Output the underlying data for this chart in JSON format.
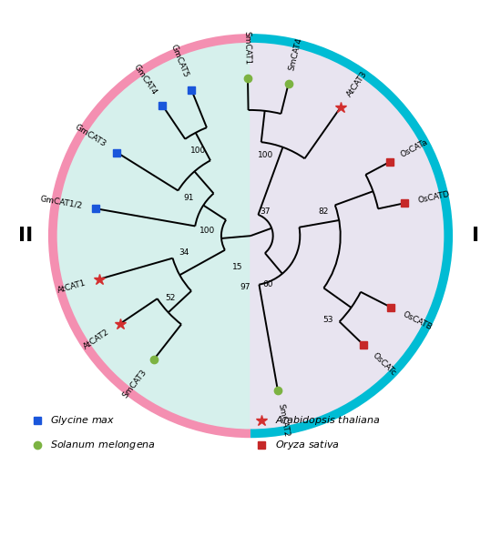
{
  "figsize": [
    5.5,
    5.89
  ],
  "dpi": 100,
  "bg_color_II": "#d6f0ec",
  "bg_color_I": "#e8e4f0",
  "arc_color_II": "#f48fb1",
  "arc_color_I": "#00bcd4",
  "arc_lw": 7,
  "wedge_r": 0.88,
  "leaf_r": 0.7,
  "species_colors": {
    "Gm": "#1a56db",
    "At": "#d32f2f",
    "Sm": "#7cb342",
    "Os": "#c62828"
  },
  "legend": [
    {
      "marker": "s",
      "color": "#1a56db",
      "label": "Glycine max"
    },
    {
      "marker": "*",
      "color": "#d32f2f",
      "label": "Arabidopsis thaliana"
    },
    {
      "marker": "o",
      "color": "#7cb342",
      "label": "Solanum melongena"
    },
    {
      "marker": "s",
      "color": "#c62828",
      "label": "Oryza sativa"
    }
  ]
}
